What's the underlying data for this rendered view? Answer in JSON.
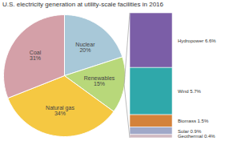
{
  "chart_data": [
    {
      "type": "pie",
      "title": "U.S. electricity generation at utility-scale facilities in 2016",
      "categories": [
        "Nuclear\n20%",
        "Renewables\n15%",
        "Natural gas\n34%",
        "Coal\n31%"
      ],
      "values": [
        20,
        15,
        34,
        31
      ],
      "colors": [
        "#a8c8d8",
        "#b8d87a",
        "#f5c842",
        "#d4a0a8"
      ]
    },
    {
      "type": "bar",
      "stacked": true,
      "tick_labels": false,
      "series": [
        {
          "name": "Hydropower 6.6%",
          "color": "#7b5ea7",
          "values": [
            6.6
          ]
        },
        {
          "name": "Wind 5.7%",
          "color": "#2fa8aa",
          "values": [
            5.7
          ]
        },
        {
          "name": "Biomass 1.5%",
          "color": "#d4823a",
          "values": [
            1.5
          ]
        },
        {
          "name": "Solar 0.9%",
          "color": "#a0a8c8",
          "values": [
            0.9
          ]
        },
        {
          "name": "Geothermal 0.4%",
          "color": "#d0b8c0",
          "values": [
            0.4
          ]
        }
      ]
    }
  ]
}
